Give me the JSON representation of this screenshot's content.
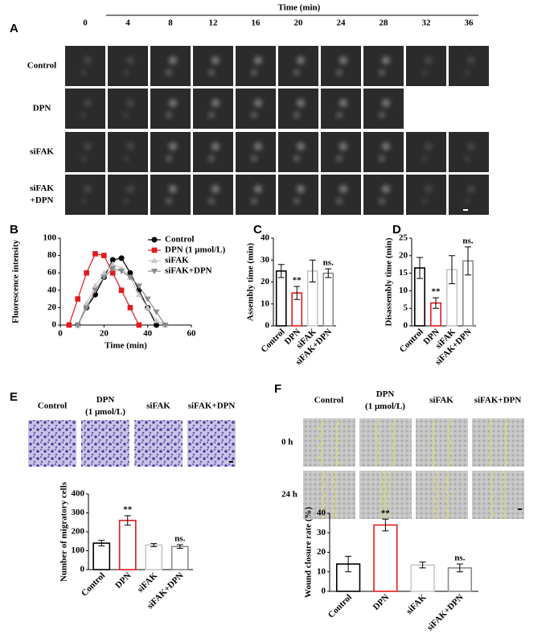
{
  "panel_a": {
    "panel": "A",
    "axis_title": "Time (min)",
    "times": [
      "0",
      "4",
      "8",
      "12",
      "16",
      "20",
      "24",
      "28",
      "32",
      "36"
    ],
    "rows": [
      "Control",
      "DPN",
      "siFAK",
      [
        "siFAK",
        "+DPN"
      ]
    ]
  },
  "panel_e": {
    "panel": "E",
    "labels": [
      "Control",
      [
        "DPN",
        "(1 μmol/L)"
      ],
      "siFAK",
      "siFAK+DPN"
    ]
  },
  "panel_f": {
    "panel": "F",
    "labels": [
      "Control",
      [
        "DPN",
        "(1 μmol/L)"
      ],
      "siFAK",
      "siFAK+DPN"
    ],
    "rows": [
      "0 h",
      "24 h"
    ]
  },
  "chart_data": [
    {
      "type": "line",
      "panel": "B",
      "x_label": "Time (min)",
      "y_label": "Fluorescence intensity",
      "x": [
        4,
        8,
        12,
        16,
        20,
        24,
        28,
        32,
        36,
        40,
        44,
        48
      ],
      "xlim": [
        0,
        60
      ],
      "xticks": [
        0,
        20,
        40,
        60
      ],
      "ylim": [
        0,
        100
      ],
      "yticks": [
        0,
        20,
        40,
        60,
        80,
        100
      ],
      "series": [
        {
          "name": "Control",
          "color": "#000000",
          "marker": "circle",
          "values": [
            null,
            0,
            20,
            35,
            55,
            75,
            77,
            60,
            40,
            20,
            0,
            null
          ]
        },
        {
          "name": "DPN (1 μmol/L)",
          "color": "#e31a1c",
          "marker": "square",
          "values": [
            0,
            30,
            60,
            82,
            80,
            60,
            40,
            20,
            0,
            null,
            null,
            null
          ]
        },
        {
          "name": "siFAK",
          "color": "#c8c8c8",
          "marker": "triangle",
          "values": [
            null,
            0,
            25,
            45,
            60,
            70,
            65,
            55,
            35,
            20,
            5,
            0
          ]
        },
        {
          "name": "siFAK+DPN",
          "color": "#8c8c8c",
          "marker": "triangle-down",
          "values": [
            null,
            0,
            20,
            40,
            55,
            65,
            62,
            55,
            45,
            30,
            15,
            0
          ]
        }
      ]
    },
    {
      "type": "bar",
      "panel": "C",
      "y_label": "Assembly time (min)",
      "categories": [
        "Control",
        "DPN",
        "siFAK",
        "siFAK+DPN"
      ],
      "values": [
        25,
        15,
        25,
        24
      ],
      "errors": [
        3,
        3,
        5,
        2
      ],
      "annotations": [
        null,
        "**",
        null,
        "ns."
      ],
      "colors": [
        "#000000",
        "#e31a1c",
        "#c8c8c8",
        "#8c8c8c"
      ],
      "ylim": [
        0,
        40
      ],
      "yticks": [
        0,
        10,
        20,
        30,
        40
      ]
    },
    {
      "type": "bar",
      "panel": "D",
      "y_label": "Disassembly time (min)",
      "categories": [
        "Control",
        "DPN",
        "siFAK",
        "siFAK+DPN"
      ],
      "values": [
        16.5,
        6.5,
        16,
        18.5
      ],
      "errors": [
        3,
        1.5,
        4,
        4
      ],
      "annotations": [
        null,
        "**",
        null,
        "ns."
      ],
      "colors": [
        "#000000",
        "#e31a1c",
        "#c8c8c8",
        "#8c8c8c"
      ],
      "ylim": [
        0,
        25
      ],
      "yticks": [
        0,
        5,
        10,
        15,
        20,
        25
      ]
    },
    {
      "type": "bar",
      "y_label": "Number of migratory cells",
      "categories": [
        "Control",
        "DPN",
        "siFAK",
        "siFAK+DPN"
      ],
      "values": [
        140,
        260,
        130,
        122
      ],
      "errors": [
        15,
        25,
        8,
        10
      ],
      "annotations": [
        null,
        "**",
        null,
        "ns."
      ],
      "colors": [
        "#000000",
        "#e31a1c",
        "#c8c8c8",
        "#8c8c8c"
      ],
      "ylim": [
        0,
        400
      ],
      "yticks": [
        0,
        100,
        200,
        300,
        400
      ]
    },
    {
      "type": "bar",
      "y_label": "Wound closure rate (%)",
      "categories": [
        "Control",
        "DPN",
        "siFAK",
        "siFAK+DPN"
      ],
      "values": [
        14,
        34,
        13.5,
        12
      ],
      "errors": [
        4,
        3,
        1.5,
        2
      ],
      "annotations": [
        null,
        "**",
        null,
        "ns."
      ],
      "colors": [
        "#000000",
        "#e31a1c",
        "#c8c8c8",
        "#8c8c8c"
      ],
      "ylim": [
        0,
        40
      ],
      "yticks": [
        0,
        10,
        20,
        30,
        40
      ]
    }
  ]
}
